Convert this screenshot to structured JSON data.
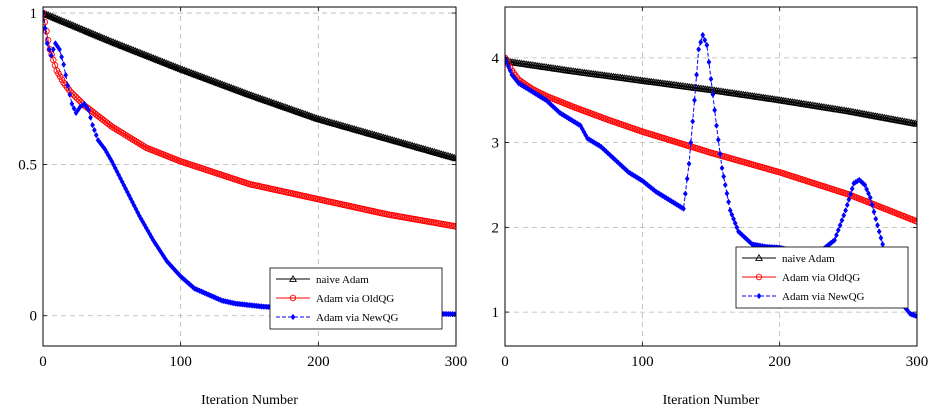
{
  "chart_data": [
    {
      "type": "line",
      "title": "",
      "xlabel": "Iteration Number",
      "ylabel": "",
      "xlim": [
        0,
        300
      ],
      "ylim": [
        -0.1,
        1.02
      ],
      "xticks": [
        0,
        100,
        200,
        300
      ],
      "yticks": [
        0,
        0.5,
        1
      ],
      "xtick_labels": [
        "0",
        "100",
        "200",
        "300"
      ],
      "ytick_labels": [
        "0",
        "0.5",
        "1"
      ],
      "grid": true,
      "legend_position": "bottom-right",
      "series": [
        {
          "name": "naive Adam",
          "color": "#000000",
          "marker": "triangle",
          "dash": "solid",
          "x": [
            0,
            50,
            100,
            150,
            200,
            250,
            300
          ],
          "y": [
            1.0,
            0.905,
            0.815,
            0.73,
            0.65,
            0.585,
            0.52
          ]
        },
        {
          "name": "Adam via OldQG",
          "color": "#ff0000",
          "marker": "circle",
          "dash": "solid",
          "x": [
            0,
            5,
            10,
            15,
            20,
            30,
            40,
            50,
            75,
            100,
            150,
            200,
            250,
            300
          ],
          "y": [
            1.0,
            0.88,
            0.81,
            0.77,
            0.74,
            0.695,
            0.66,
            0.625,
            0.555,
            0.51,
            0.435,
            0.385,
            0.335,
            0.295
          ]
        },
        {
          "name": "Adam via NewQG",
          "color": "#0000ff",
          "marker": "diamond",
          "dash": "dashed",
          "x": [
            0,
            3,
            6,
            9,
            12,
            15,
            18,
            21,
            24,
            27,
            30,
            33,
            36,
            40,
            45,
            50,
            60,
            70,
            80,
            90,
            100,
            110,
            120,
            130,
            140,
            150,
            160,
            180,
            200,
            220,
            240,
            260,
            280,
            300
          ],
          "y": [
            1.0,
            0.9,
            0.86,
            0.9,
            0.88,
            0.83,
            0.76,
            0.7,
            0.67,
            0.69,
            0.7,
            0.68,
            0.63,
            0.58,
            0.55,
            0.51,
            0.42,
            0.33,
            0.25,
            0.18,
            0.13,
            0.09,
            0.07,
            0.05,
            0.04,
            0.035,
            0.03,
            0.025,
            0.022,
            0.018,
            0.014,
            0.01,
            0.007,
            0.005
          ]
        }
      ]
    },
    {
      "type": "line",
      "title": "",
      "xlabel": "Iteration Number",
      "ylabel": "",
      "xlim": [
        0,
        300
      ],
      "ylim": [
        0.6,
        4.6
      ],
      "xticks": [
        0,
        100,
        200,
        300
      ],
      "yticks": [
        1,
        2,
        3,
        4
      ],
      "xtick_labels": [
        "0",
        "100",
        "200",
        "300"
      ],
      "ytick_labels": [
        "1",
        "2",
        "3",
        "4"
      ],
      "grid": true,
      "legend_position": "bottom-right",
      "series": [
        {
          "name": "naive Adam",
          "color": "#000000",
          "marker": "triangle",
          "dash": "solid",
          "x": [
            0,
            50,
            100,
            150,
            200,
            250,
            300
          ],
          "y": [
            3.96,
            3.84,
            3.73,
            3.62,
            3.5,
            3.37,
            3.22
          ]
        },
        {
          "name": "Adam via OldQG",
          "color": "#ff0000",
          "marker": "circle",
          "dash": "solid",
          "x": [
            0,
            5,
            10,
            20,
            30,
            50,
            75,
            100,
            150,
            200,
            250,
            300
          ],
          "y": [
            4.0,
            3.85,
            3.74,
            3.63,
            3.55,
            3.42,
            3.27,
            3.13,
            2.88,
            2.65,
            2.39,
            2.07
          ]
        },
        {
          "name": "Adam via NewQG",
          "color": "#0000ff",
          "marker": "diamond",
          "dash": "dashed",
          "x": [
            0,
            5,
            10,
            15,
            20,
            30,
            40,
            50,
            55,
            60,
            70,
            80,
            90,
            100,
            110,
            120,
            130,
            134,
            138,
            141,
            144,
            147,
            150,
            154,
            158,
            164,
            170,
            180,
            190,
            200,
            210,
            220,
            230,
            240,
            248,
            254,
            258,
            262,
            266,
            270,
            275,
            280,
            285,
            290,
            295,
            300
          ],
          "y": [
            4.0,
            3.8,
            3.7,
            3.65,
            3.6,
            3.5,
            3.35,
            3.25,
            3.2,
            3.05,
            2.95,
            2.8,
            2.65,
            2.55,
            2.42,
            2.32,
            2.22,
            2.75,
            3.5,
            4.1,
            4.27,
            4.15,
            3.75,
            3.2,
            2.7,
            2.2,
            1.95,
            1.8,
            1.77,
            1.76,
            1.72,
            1.7,
            1.72,
            1.85,
            2.2,
            2.52,
            2.56,
            2.5,
            2.35,
            2.1,
            1.8,
            1.5,
            1.25,
            1.08,
            0.98,
            0.95
          ]
        }
      ]
    }
  ]
}
